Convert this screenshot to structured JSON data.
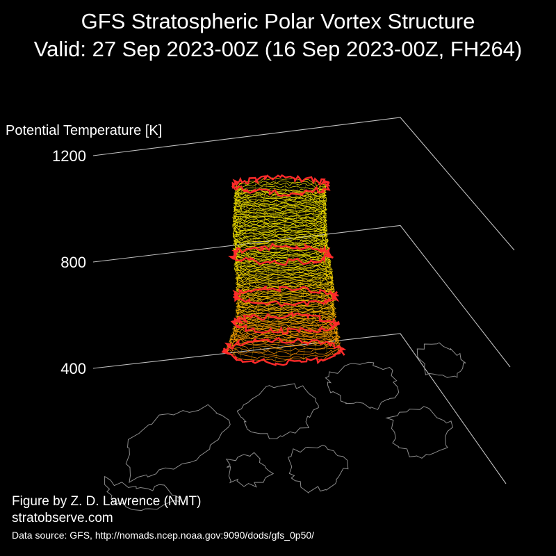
{
  "title_line1": "GFS Stratospheric Polar Vortex Structure",
  "title_line2": "Valid: 27 Sep 2023-00Z  (16 Sep 2023-00Z, FH264)",
  "chart_data": {
    "type": "3d-isosurface",
    "zlabel": "Potential Temperature [K]",
    "z_ticks": [
      1200,
      800,
      400
    ],
    "z_range": [
      400,
      1200
    ],
    "grid": true,
    "colors": {
      "background": "#000000",
      "axis_lines": "#bfbfbf",
      "vortex_lower": "#ff8c00",
      "vortex_upper": "#f2e600",
      "vortex_edge": "#ff2a2a",
      "coastlines": "#8c8c8c"
    },
    "vortex_edge_levels_K": [
      500,
      600,
      700,
      850,
      1100
    ],
    "vortex_top_K": 1100
  },
  "credits": {
    "figure_by": "Figure by Z. D. Lawrence (NMT)",
    "website": "stratobserve.com",
    "data_source": "Data source: GFS, http://nomads.ncep.noaa.gov:9090/dods/gfs_0p50/"
  }
}
